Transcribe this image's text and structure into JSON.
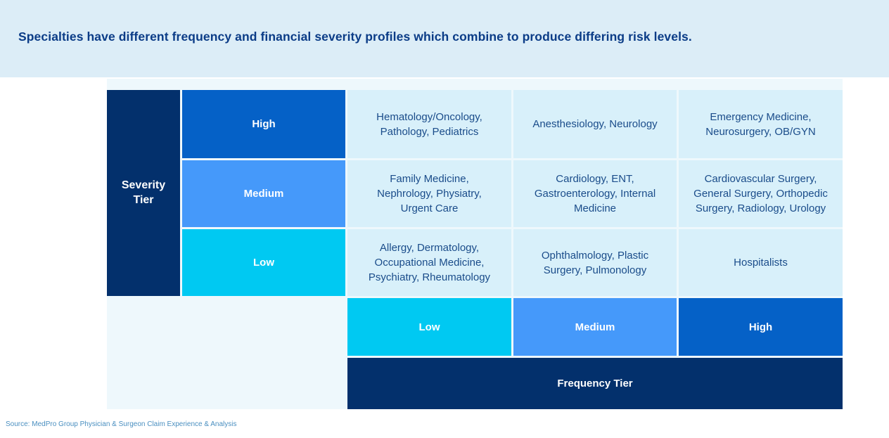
{
  "chart_data": {
    "type": "table",
    "title": "Specialties have different frequency and financial severity profiles which combine to produce differing risk levels.",
    "row_axis_label": "Severity Tier",
    "col_axis_label": "Frequency Tier",
    "severity_tiers": [
      "High",
      "Medium",
      "Low"
    ],
    "frequency_tiers": [
      "Low",
      "Medium",
      "High"
    ],
    "cells": [
      [
        "Hematology/Oncology, Pathology, Pediatrics",
        "Anesthesiology, Neurology",
        "Emergency Medicine, Neurosurgery, OB/GYN"
      ],
      [
        "Family Medicine, Nephrology, Physiatry, Urgent Care",
        "Cardiology, ENT, Gastroenterology, Internal Medicine",
        "Cardiovascular Surgery, General Surgery, Orthopedic Surgery, Radiology, Urology"
      ],
      [
        "Allergy, Dermatology, Occupational Medicine, Psychiatry, Rheumatology",
        "Ophthalmology, Plastic Surgery, Pulmonology",
        "Hospitalists"
      ]
    ],
    "source": "Source: MedPro Group Physician & Surgeon Claim Experience & Analysis"
  },
  "colors": {
    "navy": "#03306c",
    "blue_high": "#0561c7",
    "blue_medium": "#4599fa",
    "cyan_low": "#00c9f2",
    "cell_bg": "#d8f0fa",
    "container_bg": "#eef8fc",
    "band_bg": "#dcedf7",
    "title_color": "#0b3c87",
    "cell_text": "#1a4c8a",
    "source_color": "#4a8fc0"
  }
}
